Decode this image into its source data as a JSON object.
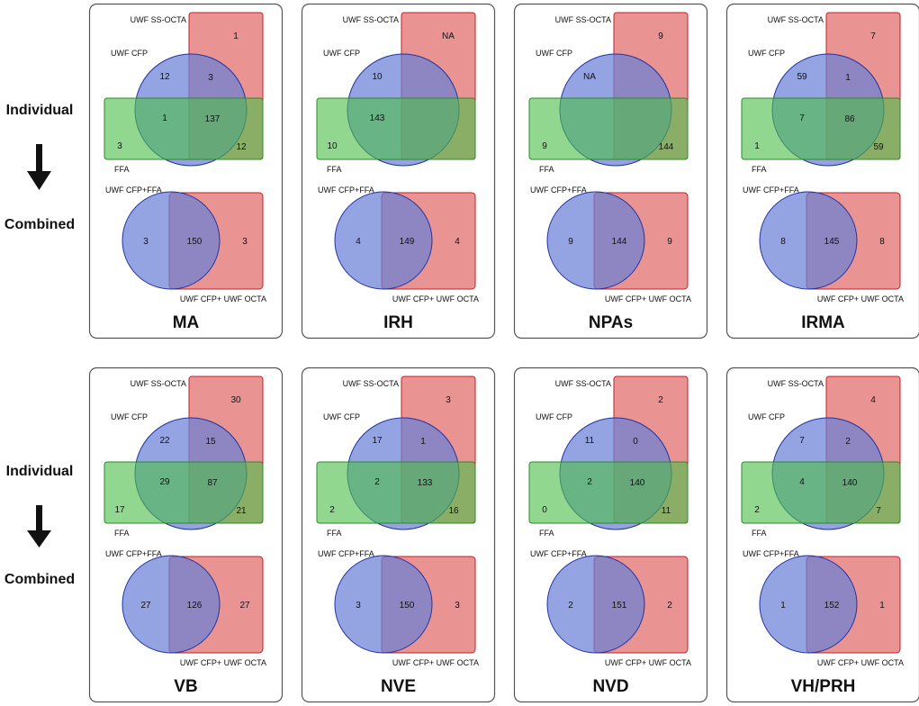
{
  "side_labels": [
    {
      "individual": "Individual",
      "combined": "Combined"
    },
    {
      "individual": "Individual",
      "combined": "Combined"
    }
  ],
  "colors": {
    "octa": "#e06a6a",
    "cfp": "#6b7fd6",
    "ffa": "#4fbf4a",
    "panel_border": "#555555"
  },
  "labels": {
    "octa": "UWF SS-OCTA",
    "cfp": "UWF CFP",
    "ffa": "FFA",
    "cfp_ffa": "UWF CFP+FFA",
    "cfp_octa": "UWF CFP+ UWF OCTA"
  },
  "panels": [
    {
      "title": "MA",
      "individual": {
        "octa_only": "1",
        "cfp_only": "12",
        "cfp_octa": "3",
        "cfp_ffa": "1",
        "all": "137",
        "ffa_only": "3",
        "ffa_octa": "12"
      },
      "combined": {
        "left": "3",
        "middle": "150",
        "right": "3"
      }
    },
    {
      "title": "IRH",
      "individual": {
        "octa_only": "NA",
        "cfp_only": "10",
        "cfp_octa": "",
        "cfp_ffa": "143",
        "all": "",
        "ffa_only": "10",
        "ffa_octa": ""
      },
      "combined": {
        "left": "4",
        "middle": "149",
        "right": "4"
      }
    },
    {
      "title": "NPAs",
      "individual": {
        "octa_only": "9",
        "cfp_only": "NA",
        "cfp_octa": "",
        "cfp_ffa": "",
        "all": "",
        "ffa_only": "9",
        "ffa_octa": "144"
      },
      "combined": {
        "left": "9",
        "middle": "144",
        "right": "9"
      }
    },
    {
      "title": "IRMA",
      "individual": {
        "octa_only": "7",
        "cfp_only": "59",
        "cfp_octa": "1",
        "cfp_ffa": "7",
        "all": "86",
        "ffa_only": "1",
        "ffa_octa": "59"
      },
      "combined": {
        "left": "8",
        "middle": "145",
        "right": "8"
      }
    },
    {
      "title": "VB",
      "individual": {
        "octa_only": "30",
        "cfp_only": "22",
        "cfp_octa": "15",
        "cfp_ffa": "29",
        "all": "87",
        "ffa_only": "17",
        "ffa_octa": "21"
      },
      "combined": {
        "left": "27",
        "middle": "126",
        "right": "27"
      }
    },
    {
      "title": "NVE",
      "individual": {
        "octa_only": "3",
        "cfp_only": "17",
        "cfp_octa": "1",
        "cfp_ffa": "2",
        "all": "133",
        "ffa_only": "2",
        "ffa_octa": "16"
      },
      "combined": {
        "left": "3",
        "middle": "150",
        "right": "3"
      }
    },
    {
      "title": "NVD",
      "individual": {
        "octa_only": "2",
        "cfp_only": "11",
        "cfp_octa": "0",
        "cfp_ffa": "2",
        "all": "140",
        "ffa_only": "0",
        "ffa_octa": "11"
      },
      "combined": {
        "left": "2",
        "middle": "151",
        "right": "2"
      }
    },
    {
      "title": "VH/PRH",
      "individual": {
        "octa_only": "4",
        "cfp_only": "7",
        "cfp_octa": "2",
        "cfp_ffa": "4",
        "all": "140",
        "ffa_only": "2",
        "ffa_octa": "7"
      },
      "combined": {
        "left": "1",
        "middle": "152",
        "right": "1"
      }
    }
  ]
}
